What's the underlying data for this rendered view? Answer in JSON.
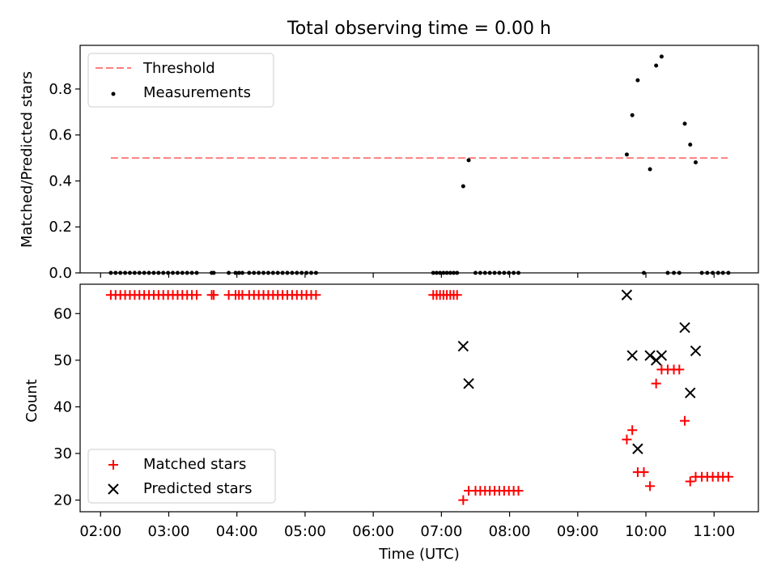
{
  "chart_data": [
    {
      "type": "scatter",
      "title": "Total observing time = 0.00 h",
      "xlabel": "",
      "ylabel": "Matched/Predicted stars",
      "ylim": [
        0,
        0.99
      ],
      "yticks": [
        "0.0",
        "0.2",
        "0.4",
        "0.6",
        "0.8"
      ],
      "legend": {
        "position": "top-left",
        "entries": [
          "Threshold",
          "Measurements"
        ]
      },
      "threshold": {
        "name": "Threshold",
        "value": 0.5,
        "x_start": 2.15,
        "x_end": 11.2,
        "color": "#ff7f7f"
      },
      "series": [
        {
          "name": "Measurements",
          "color": "#000000",
          "x": [
            2.15,
            2.22,
            2.29,
            2.36,
            2.43,
            2.5,
            2.57,
            2.64,
            2.71,
            2.78,
            2.85,
            2.92,
            2.99,
            3.06,
            3.13,
            3.2,
            3.27,
            3.34,
            3.41,
            3.63,
            3.66,
            3.88,
            3.98,
            4.03,
            4.08,
            4.18,
            4.25,
            4.32,
            4.39,
            4.46,
            4.53,
            4.6,
            4.67,
            4.74,
            4.81,
            4.88,
            4.95,
            5.02,
            5.09,
            5.16,
            6.88,
            6.93,
            6.98,
            7.03,
            7.08,
            7.13,
            7.18,
            7.23,
            7.32,
            7.4,
            7.5,
            7.57,
            7.64,
            7.71,
            7.78,
            7.85,
            7.92,
            7.99,
            8.06,
            8.13,
            9.72,
            9.8,
            9.88,
            9.97,
            10.06,
            10.15,
            10.23,
            10.32,
            10.41,
            10.49,
            10.57,
            10.65,
            10.73,
            10.82,
            10.9,
            10.98,
            11.06,
            11.13,
            11.21
          ],
          "y": [
            0,
            0,
            0,
            0,
            0,
            0,
            0,
            0,
            0,
            0,
            0,
            0,
            0,
            0,
            0,
            0,
            0,
            0,
            0,
            0,
            0,
            0,
            0,
            0,
            0,
            0,
            0,
            0,
            0,
            0,
            0,
            0,
            0,
            0,
            0,
            0,
            0,
            0,
            0,
            0,
            0,
            0,
            0,
            0,
            0,
            0,
            0,
            0,
            0.377,
            0.49,
            0,
            0,
            0,
            0,
            0,
            0,
            0,
            0,
            0,
            0,
            0.515,
            0.686,
            0.838,
            0,
            0.451,
            0.902,
            0.941,
            0,
            0,
            0,
            0.649,
            0.558,
            0.481,
            0,
            0,
            0,
            0,
            0,
            0
          ]
        }
      ]
    },
    {
      "type": "scatter",
      "title": "",
      "xlabel": "Time (UTC)",
      "ylabel": "Count",
      "ylim": [
        17.5,
        66.3
      ],
      "yticks": [
        "20",
        "30",
        "40",
        "50",
        "60"
      ],
      "xticks": [
        "02:00",
        "03:00",
        "04:00",
        "05:00",
        "06:00",
        "07:00",
        "08:00",
        "09:00",
        "10:00",
        "11:00"
      ],
      "xlim": [
        1.7,
        11.65
      ],
      "legend": {
        "position": "bottom-left",
        "entries": [
          "Matched stars",
          "Predicted stars"
        ]
      },
      "series": [
        {
          "name": "Matched stars",
          "marker": "plus",
          "color": "#ff0000",
          "x": [
            2.15,
            2.22,
            2.29,
            2.36,
            2.43,
            2.5,
            2.57,
            2.64,
            2.71,
            2.78,
            2.85,
            2.92,
            2.99,
            3.06,
            3.13,
            3.2,
            3.27,
            3.34,
            3.41,
            3.63,
            3.66,
            3.88,
            3.98,
            4.03,
            4.08,
            4.18,
            4.25,
            4.32,
            4.39,
            4.46,
            4.53,
            4.6,
            4.67,
            4.74,
            4.81,
            4.88,
            4.95,
            5.02,
            5.09,
            5.16,
            6.88,
            6.93,
            6.98,
            7.03,
            7.08,
            7.13,
            7.18,
            7.23,
            7.32,
            7.4,
            7.5,
            7.57,
            7.64,
            7.71,
            7.78,
            7.85,
            7.92,
            7.99,
            8.06,
            8.13,
            9.72,
            9.8,
            9.88,
            9.97,
            10.06,
            10.15,
            10.23,
            10.32,
            10.41,
            10.49,
            10.57,
            10.65,
            10.73,
            10.82,
            10.9,
            10.98,
            11.06,
            11.13,
            11.21
          ],
          "y": [
            64,
            64,
            64,
            64,
            64,
            64,
            64,
            64,
            64,
            64,
            64,
            64,
            64,
            64,
            64,
            64,
            64,
            64,
            64,
            64,
            64,
            64,
            64,
            64,
            64,
            64,
            64,
            64,
            64,
            64,
            64,
            64,
            64,
            64,
            64,
            64,
            64,
            64,
            64,
            64,
            64,
            64,
            64,
            64,
            64,
            64,
            64,
            64,
            20,
            22,
            22,
            22,
            22,
            22,
            22,
            22,
            22,
            22,
            22,
            22,
            33,
            35,
            26,
            26,
            23,
            45,
            48,
            48,
            48,
            48,
            37,
            24,
            25,
            25,
            25,
            25,
            25,
            25,
            25
          ]
        },
        {
          "name": "Predicted stars",
          "marker": "x",
          "color": "#000000",
          "x": [
            7.32,
            7.4,
            9.72,
            9.8,
            9.88,
            10.06,
            10.15,
            10.23,
            10.57,
            10.65,
            10.73
          ],
          "y": [
            53,
            45,
            64,
            51,
            31,
            51,
            50,
            51,
            57,
            43,
            52
          ]
        }
      ]
    }
  ]
}
